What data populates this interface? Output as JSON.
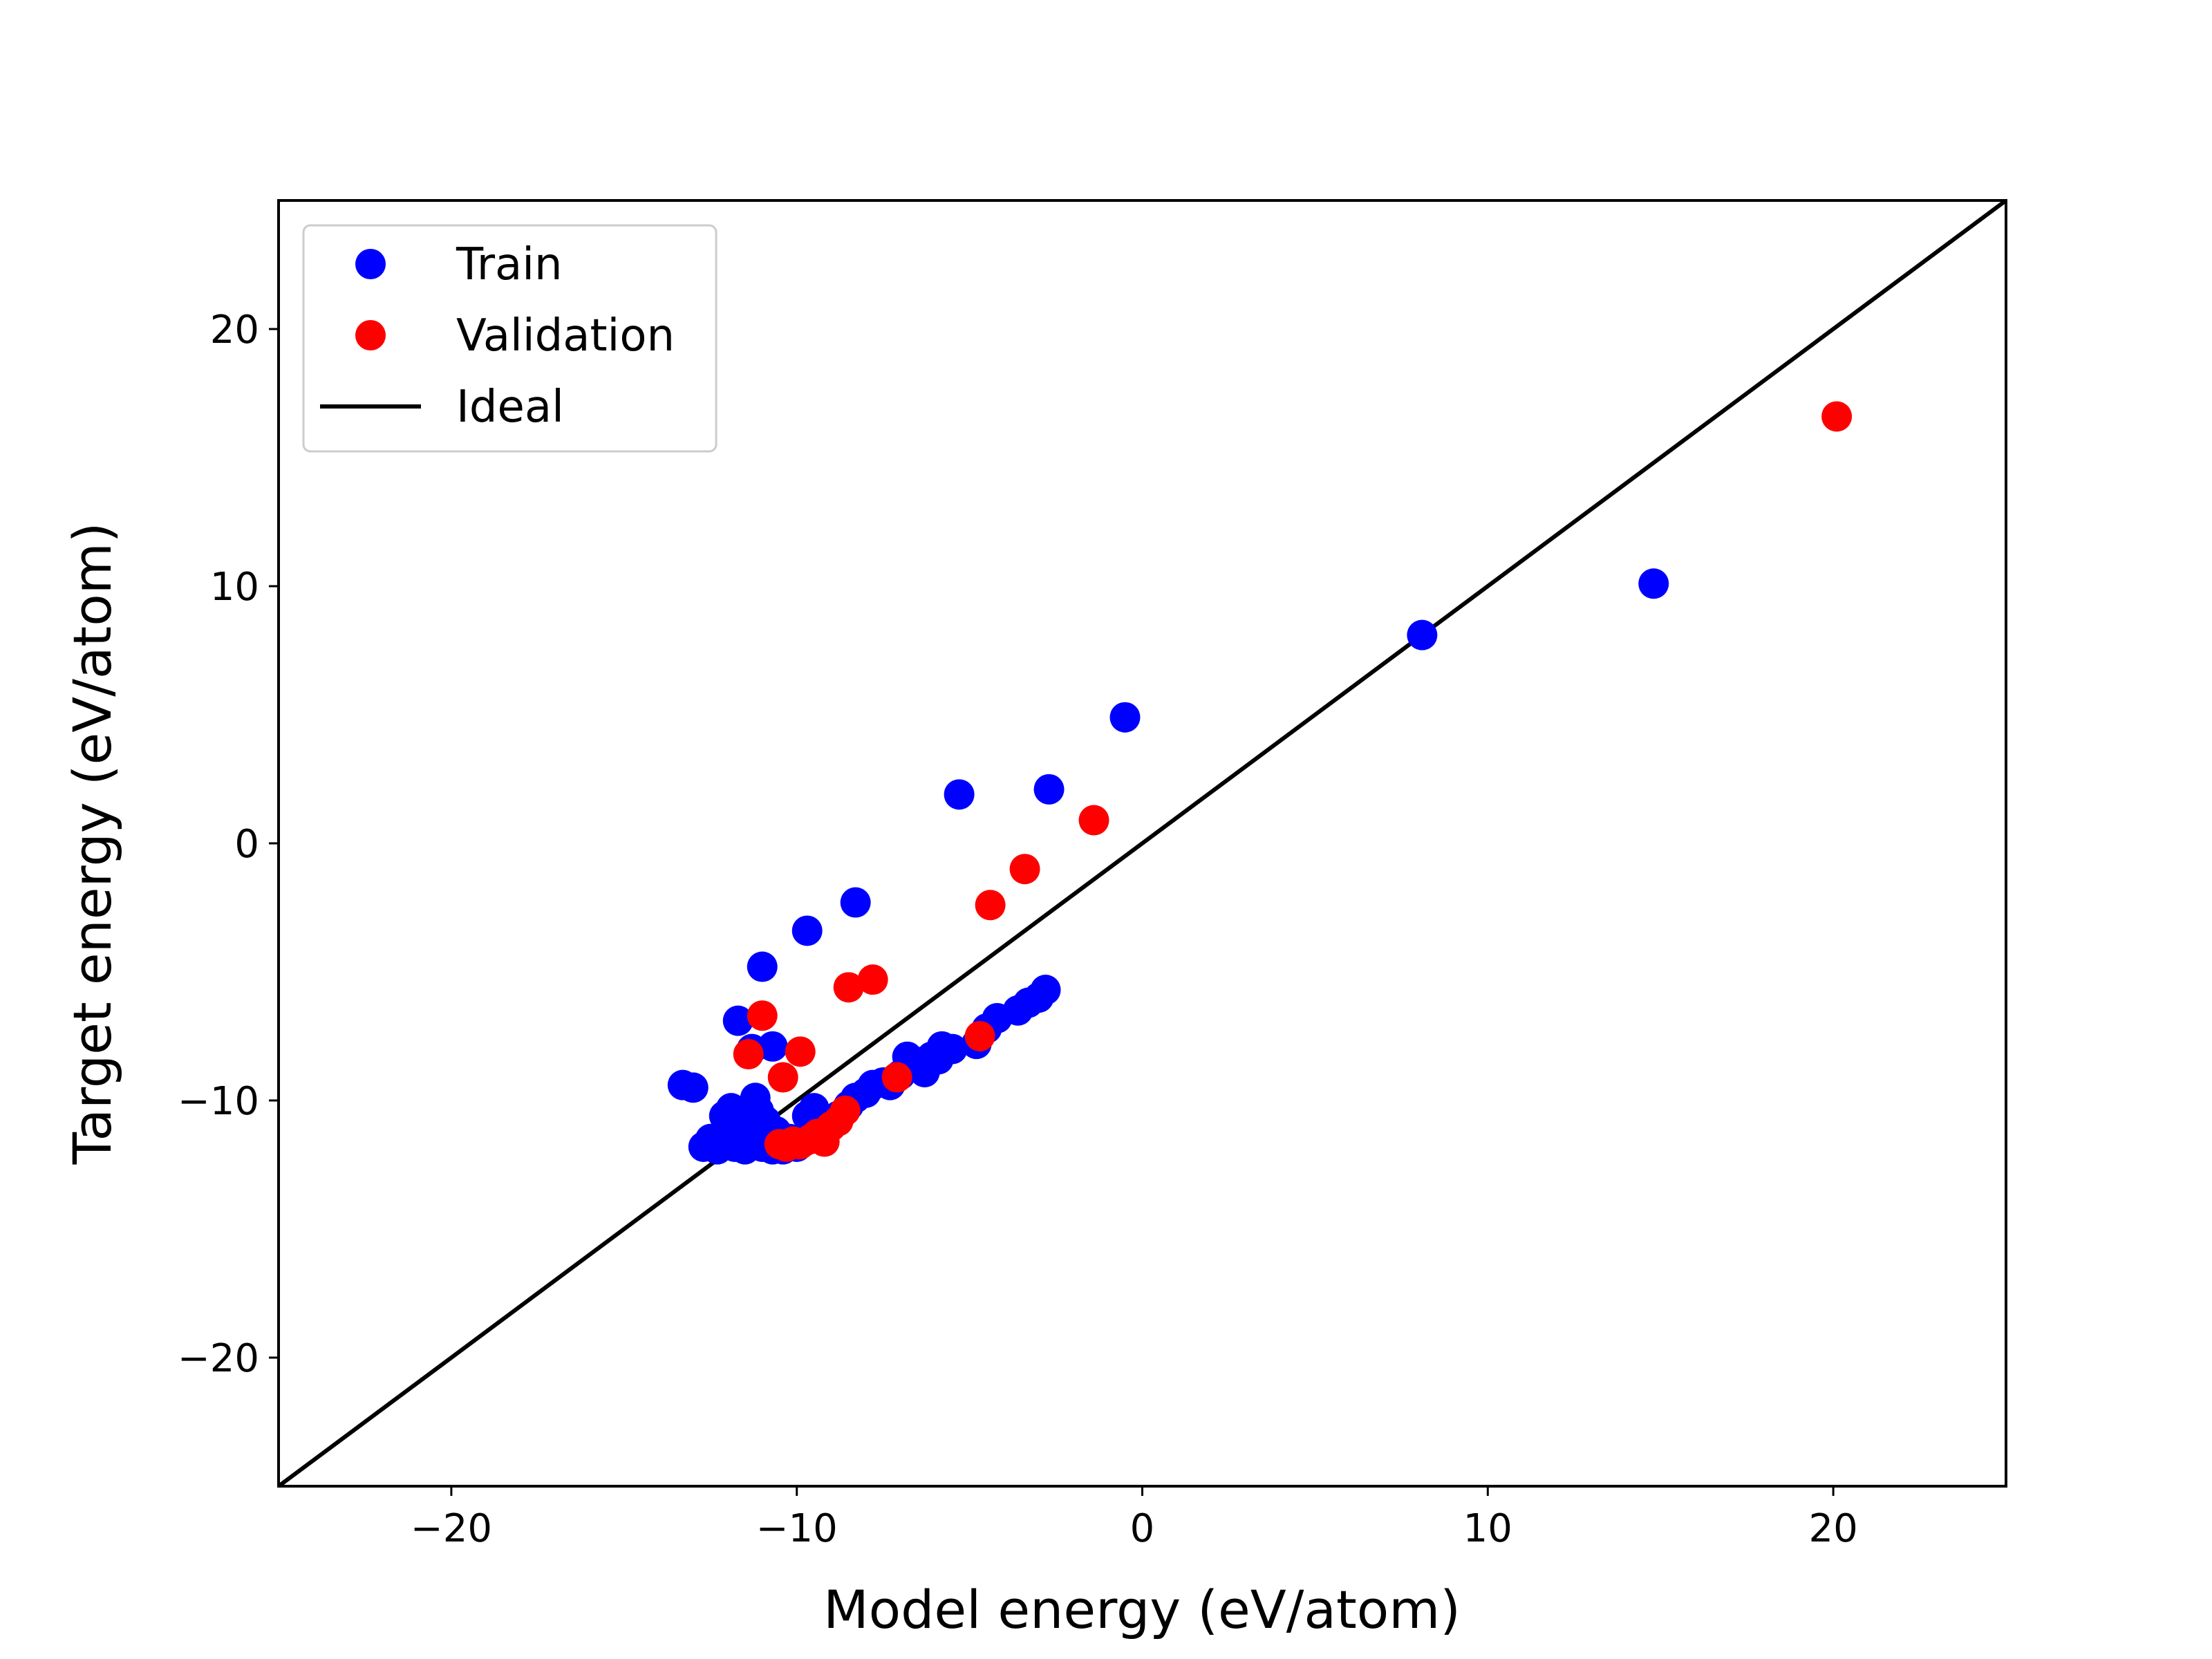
{
  "chart_data": {
    "type": "scatter",
    "title": "",
    "xlabel": "Model energy (eV/atom)",
    "ylabel": "Target energy (eV/atom)",
    "xlim": [
      -25,
      25
    ],
    "ylim": [
      -25,
      25
    ],
    "xticks": [
      -20,
      -10,
      0,
      10,
      20
    ],
    "yticks": [
      -20,
      -10,
      0,
      10,
      20
    ],
    "xtick_labels": [
      "−20",
      "−10",
      "0",
      "10",
      "20"
    ],
    "ytick_labels": [
      "−20",
      "−10",
      "0",
      "10",
      "20"
    ],
    "grid": false,
    "legend_position": "top-left",
    "legend": [
      "Train",
      "Validation",
      "Ideal"
    ],
    "series": [
      {
        "name": "Train",
        "color": "#0000ff",
        "points": [
          [
            -13.3,
            -9.4
          ],
          [
            -13.0,
            -9.5
          ],
          [
            -12.7,
            -11.8
          ],
          [
            -12.5,
            -11.5
          ],
          [
            -12.3,
            -11.9
          ],
          [
            -12.2,
            -11.6
          ],
          [
            -12.1,
            -10.6
          ],
          [
            -12.0,
            -11.2
          ],
          [
            -11.9,
            -10.3
          ],
          [
            -11.8,
            -11.8
          ],
          [
            -11.7,
            -10.9
          ],
          [
            -11.6,
            -11.5
          ],
          [
            -11.5,
            -11.9
          ],
          [
            -11.4,
            -11.3
          ],
          [
            -11.3,
            -11.7
          ],
          [
            -11.2,
            -9.9
          ],
          [
            -11.1,
            -10.4
          ],
          [
            -11.0,
            -11.8
          ],
          [
            -10.9,
            -10.8
          ],
          [
            -10.8,
            -11.6
          ],
          [
            -10.7,
            -11.9
          ],
          [
            -10.6,
            -11.2
          ],
          [
            -10.5,
            -11.7
          ],
          [
            -10.4,
            -11.9
          ],
          [
            -10.2,
            -11.5
          ],
          [
            -10.0,
            -11.8
          ],
          [
            -9.8,
            -11.6
          ],
          [
            -9.7,
            -10.6
          ],
          [
            -9.5,
            -10.3
          ],
          [
            -9.3,
            -11.0
          ],
          [
            -9.0,
            -10.9
          ],
          [
            -8.8,
            -10.6
          ],
          [
            -8.5,
            -10.2
          ],
          [
            -8.3,
            -9.9
          ],
          [
            -8.0,
            -9.7
          ],
          [
            -7.8,
            -9.4
          ],
          [
            -7.5,
            -9.3
          ],
          [
            -7.3,
            -9.4
          ],
          [
            -7.0,
            -9.0
          ],
          [
            -6.8,
            -8.3
          ],
          [
            -6.5,
            -8.5
          ],
          [
            -6.3,
            -8.9
          ],
          [
            -6.1,
            -8.3
          ],
          [
            -5.9,
            -8.4
          ],
          [
            -5.8,
            -7.9
          ],
          [
            -5.5,
            -8.0
          ],
          [
            -4.8,
            -7.8
          ],
          [
            -4.5,
            -7.2
          ],
          [
            -4.2,
            -6.8
          ],
          [
            -3.6,
            -6.5
          ],
          [
            -3.3,
            -6.2
          ],
          [
            -3.0,
            -6.0
          ],
          [
            -2.8,
            -5.7
          ],
          [
            -11.7,
            -6.9
          ],
          [
            -11.3,
            -8.0
          ],
          [
            -10.7,
            -7.9
          ],
          [
            -11.0,
            -4.8
          ],
          [
            -9.7,
            -3.4
          ],
          [
            -8.3,
            -2.3
          ],
          [
            -5.3,
            1.9
          ],
          [
            -2.7,
            2.1
          ],
          [
            -0.5,
            4.9
          ],
          [
            8.1,
            8.1
          ],
          [
            14.8,
            10.1
          ]
        ]
      },
      {
        "name": "Validation",
        "color": "#ff0000",
        "points": [
          [
            -11.4,
            -8.2
          ],
          [
            -11.0,
            -6.7
          ],
          [
            -10.4,
            -9.1
          ],
          [
            -9.9,
            -8.1
          ],
          [
            -10.5,
            -11.7
          ],
          [
            -10.3,
            -11.8
          ],
          [
            -10.1,
            -11.6
          ],
          [
            -9.9,
            -11.7
          ],
          [
            -9.6,
            -11.5
          ],
          [
            -9.4,
            -11.3
          ],
          [
            -9.2,
            -11.6
          ],
          [
            -9.0,
            -11.0
          ],
          [
            -8.8,
            -10.8
          ],
          [
            -8.6,
            -10.4
          ],
          [
            -7.1,
            -9.1
          ],
          [
            -4.7,
            -7.5
          ],
          [
            -8.5,
            -5.6
          ],
          [
            -7.8,
            -5.3
          ],
          [
            -4.4,
            -2.4
          ],
          [
            -3.4,
            -1.0
          ],
          [
            -1.4,
            0.9
          ],
          [
            20.1,
            16.6
          ]
        ]
      },
      {
        "name": "Ideal",
        "color": "#000000",
        "kind": "line",
        "points": [
          [
            -25,
            -25
          ],
          [
            25,
            25
          ]
        ]
      }
    ]
  }
}
